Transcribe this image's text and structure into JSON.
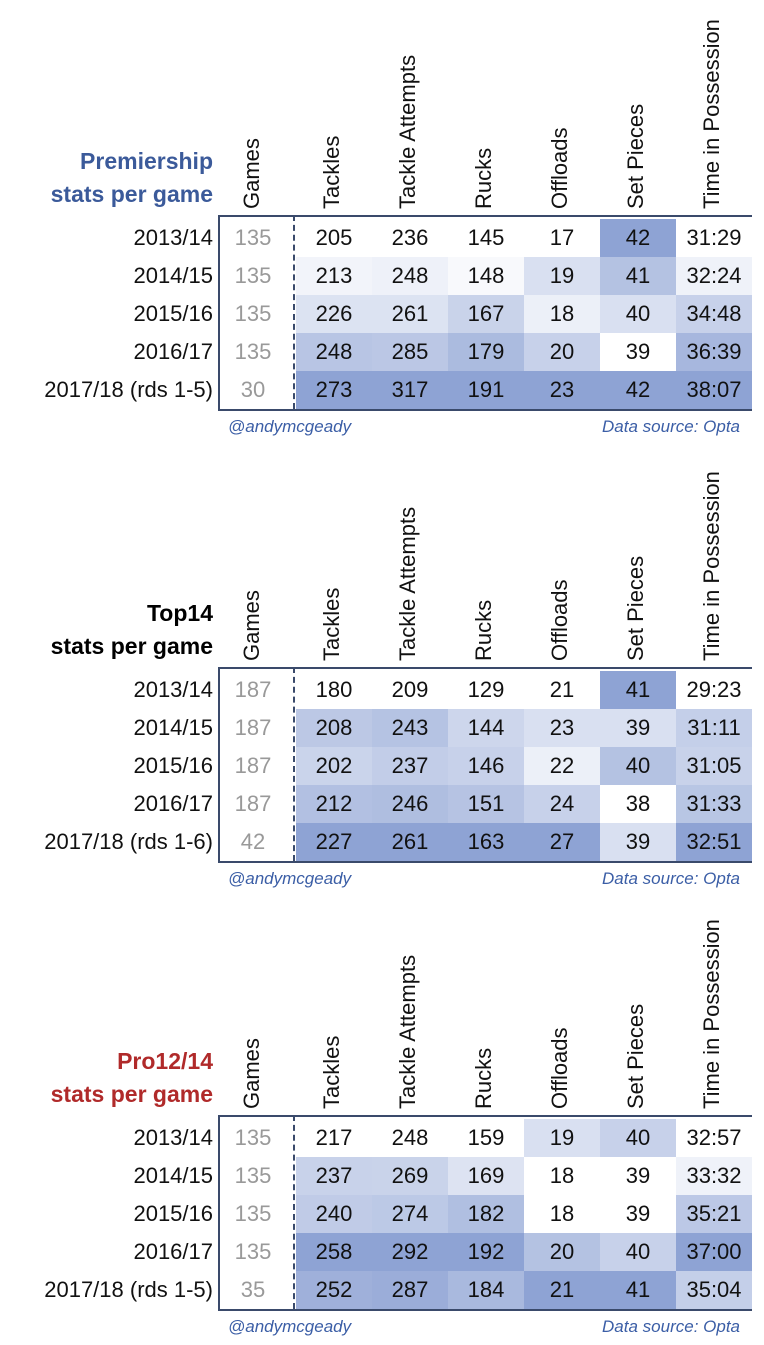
{
  "columns": [
    "Games",
    "Tackles",
    "Tackle Attempts",
    "Rucks",
    "Offloads",
    "Set Pieces",
    "Time in Possession"
  ],
  "colors": {
    "dark": "#8ea3d4",
    "light": "#ffffff",
    "games_text": "#999999",
    "footer": "#3b5ea6"
  },
  "chart_data": [
    {
      "type": "table",
      "title_lines": [
        "Premiership",
        "stats per game"
      ],
      "title_color": "#3b5a9a",
      "seasons": [
        "2013/14",
        "2014/15",
        "2015/16",
        "2016/17",
        "2017/18 (rds 1-5)"
      ],
      "games": [
        "135",
        "135",
        "135",
        "135",
        "30"
      ],
      "values": [
        [
          "205",
          "236",
          "145",
          "17",
          "42",
          "31:29"
        ],
        [
          "213",
          "248",
          "148",
          "19",
          "41",
          "32:24"
        ],
        [
          "226",
          "261",
          "167",
          "18",
          "40",
          "34:48"
        ],
        [
          "248",
          "285",
          "179",
          "20",
          "39",
          "36:39"
        ],
        [
          "273",
          "317",
          "191",
          "23",
          "42",
          "38:07"
        ]
      ],
      "footer_left": "@andymcgeady",
      "footer_right": "Data source: Opta"
    },
    {
      "type": "table",
      "title_lines": [
        "Top14",
        "stats per game"
      ],
      "title_color": "#000000",
      "seasons": [
        "2013/14",
        "2014/15",
        "2015/16",
        "2016/17",
        "2017/18 (rds 1-6)"
      ],
      "games": [
        "187",
        "187",
        "187",
        "187",
        "42"
      ],
      "values": [
        [
          "180",
          "209",
          "129",
          "21",
          "41",
          "29:23"
        ],
        [
          "208",
          "243",
          "144",
          "23",
          "39",
          "31:11"
        ],
        [
          "202",
          "237",
          "146",
          "22",
          "40",
          "31:05"
        ],
        [
          "212",
          "246",
          "151",
          "24",
          "38",
          "31:33"
        ],
        [
          "227",
          "261",
          "163",
          "27",
          "39",
          "32:51"
        ]
      ],
      "footer_left": "@andymcgeady",
      "footer_right": "Data source: Opta"
    },
    {
      "type": "table",
      "title_lines": [
        "Pro12/14",
        "stats per game"
      ],
      "title_color": "#b02a2a",
      "seasons": [
        "2013/14",
        "2014/15",
        "2015/16",
        "2016/17",
        "2017/18 (rds 1-5)"
      ],
      "games": [
        "135",
        "135",
        "135",
        "135",
        "35"
      ],
      "values": [
        [
          "217",
          "248",
          "159",
          "19",
          "40",
          "32:57"
        ],
        [
          "237",
          "269",
          "169",
          "18",
          "39",
          "33:32"
        ],
        [
          "240",
          "274",
          "182",
          "18",
          "39",
          "35:21"
        ],
        [
          "258",
          "292",
          "192",
          "20",
          "40",
          "37:00"
        ],
        [
          "252",
          "287",
          "184",
          "21",
          "41",
          "35:04"
        ]
      ],
      "footer_left": "@andymcgeady",
      "footer_right": "Data source: Opta"
    }
  ]
}
